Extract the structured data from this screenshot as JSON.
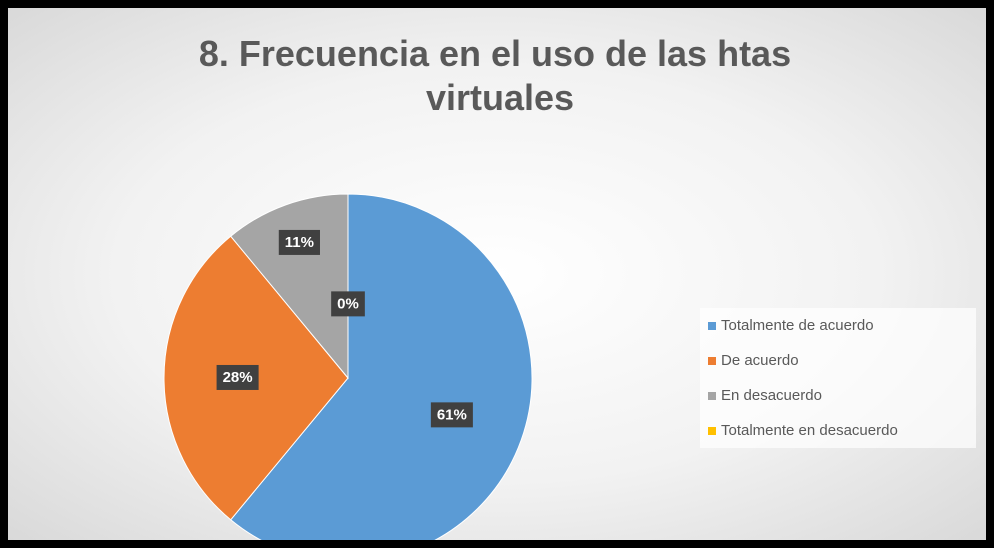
{
  "chart_data": {
    "type": "pie",
    "title": "8. Frecuencia en el uso de las htas virtuales",
    "categories": [
      "Totalmente de acuerdo",
      "De acuerdo",
      "En desacuerdo",
      "Totalmente en desacuerdo"
    ],
    "values": [
      61,
      28,
      11,
      0
    ],
    "value_labels": [
      "61%",
      "28%",
      "11%",
      "0%"
    ],
    "colors": [
      "#5b9bd5",
      "#ed7d31",
      "#a5a5a5",
      "#ffc000"
    ],
    "legend": "right"
  }
}
